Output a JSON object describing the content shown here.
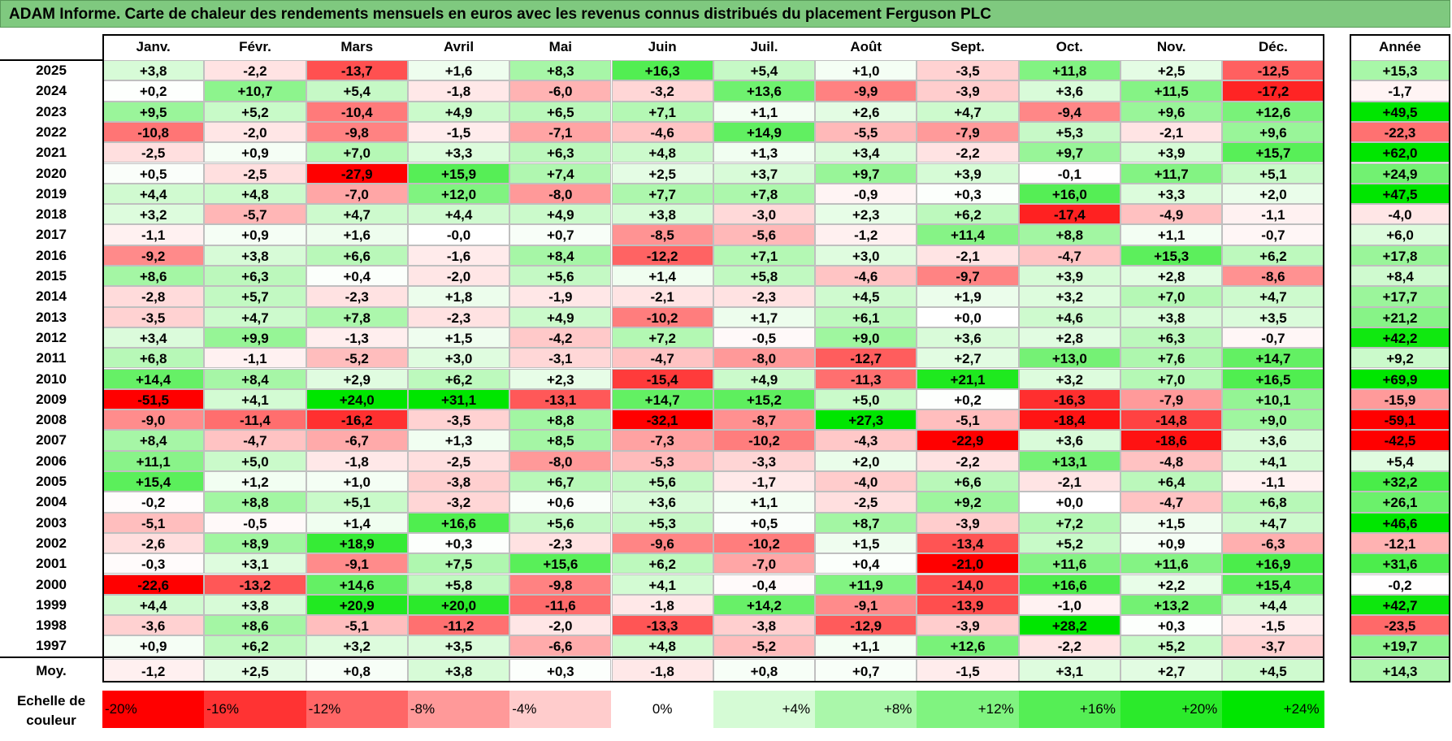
{
  "title": "ADAM Informe. Carte de chaleur des rendements mensuels en euros avec les revenus connus distribués du placement Ferguson PLC",
  "year_header": "Année",
  "avg_label": "Moy.",
  "scale_title": "Echelle de couleur",
  "colors": {
    "title_bg": "#7fc97f",
    "neg_max": "#ff0000",
    "pos_max": "#00e600",
    "neutral": "#ffffff"
  },
  "chart_data": {
    "type": "heatmap",
    "title": "ADAM Informe. Carte de chaleur des rendements mensuels en euros avec les revenus connus distribués du placement Ferguson PLC",
    "months": [
      "Janv.",
      "Févr.",
      "Mars",
      "Avril",
      "Mai",
      "Juin",
      "Juil.",
      "Août",
      "Sept.",
      "Oct.",
      "Nov.",
      "Déc."
    ],
    "rows": [
      {
        "year": "2025",
        "values": [
          "+3,8",
          "-2,2",
          "-13,7",
          "+1,6",
          "+8,3",
          "+16,3",
          "+5,4",
          "+1,0",
          "-3,5",
          "+11,8",
          "+2,5",
          "-12,5"
        ],
        "annual": "+15,3"
      },
      {
        "year": "2024",
        "values": [
          "+0,2",
          "+10,7",
          "+5,4",
          "-1,8",
          "-6,0",
          "-3,2",
          "+13,6",
          "-9,9",
          "-3,9",
          "+3,6",
          "+11,5",
          "-17,2"
        ],
        "annual": "-1,7"
      },
      {
        "year": "2023",
        "values": [
          "+9,5",
          "+5,2",
          "-10,4",
          "+4,9",
          "+6,5",
          "+7,1",
          "+1,1",
          "+2,6",
          "+4,7",
          "-9,4",
          "+9,6",
          "+12,6"
        ],
        "annual": "+49,5"
      },
      {
        "year": "2022",
        "values": [
          "-10,8",
          "-2,0",
          "-9,8",
          "-1,5",
          "-7,1",
          "-4,6",
          "+14,9",
          "-5,5",
          "-7,9",
          "+5,3",
          "-2,1",
          "+9,6"
        ],
        "annual": "-22,3"
      },
      {
        "year": "2021",
        "values": [
          "-2,5",
          "+0,9",
          "+7,0",
          "+3,3",
          "+6,3",
          "+4,8",
          "+1,3",
          "+3,4",
          "-2,2",
          "+9,7",
          "+3,9",
          "+15,7"
        ],
        "annual": "+62,0"
      },
      {
        "year": "2020",
        "values": [
          "+0,5",
          "-2,5",
          "-27,9",
          "+15,9",
          "+7,4",
          "+2,5",
          "+3,7",
          "+9,7",
          "+3,9",
          "-0,1",
          "+11,7",
          "+5,1"
        ],
        "annual": "+24,9"
      },
      {
        "year": "2019",
        "values": [
          "+4,4",
          "+4,8",
          "-7,0",
          "+12,0",
          "-8,0",
          "+7,7",
          "+7,8",
          "-0,9",
          "+0,3",
          "+16,0",
          "+3,3",
          "+2,0"
        ],
        "annual": "+47,5"
      },
      {
        "year": "2018",
        "values": [
          "+3,2",
          "-5,7",
          "+4,7",
          "+4,4",
          "+4,9",
          "+3,8",
          "-3,0",
          "+2,3",
          "+6,2",
          "-17,4",
          "-4,9",
          "-1,1"
        ],
        "annual": "-4,0"
      },
      {
        "year": "2017",
        "values": [
          "-1,1",
          "+0,9",
          "+1,6",
          "-0,0",
          "+0,7",
          "-8,5",
          "-5,6",
          "-1,2",
          "+11,4",
          "+8,8",
          "+1,1",
          "-0,7"
        ],
        "annual": "+6,0"
      },
      {
        "year": "2016",
        "values": [
          "-9,2",
          "+3,8",
          "+6,6",
          "-1,6",
          "+8,4",
          "-12,2",
          "+7,1",
          "+3,0",
          "-2,1",
          "-4,7",
          "+15,3",
          "+6,2"
        ],
        "annual": "+17,8"
      },
      {
        "year": "2015",
        "values": [
          "+8,6",
          "+6,3",
          "+0,4",
          "-2,0",
          "+5,6",
          "+1,4",
          "+5,8",
          "-4,6",
          "-9,7",
          "+3,9",
          "+2,8",
          "-8,6"
        ],
        "annual": "+8,4"
      },
      {
        "year": "2014",
        "values": [
          "-2,8",
          "+5,7",
          "-2,3",
          "+1,8",
          "-1,9",
          "-2,1",
          "-2,3",
          "+4,5",
          "+1,9",
          "+3,2",
          "+7,0",
          "+4,7"
        ],
        "annual": "+17,7"
      },
      {
        "year": "2013",
        "values": [
          "-3,5",
          "+4,7",
          "+7,8",
          "-2,3",
          "+4,9",
          "-10,2",
          "+1,7",
          "+6,1",
          "+0,0",
          "+4,6",
          "+3,8",
          "+3,5"
        ],
        "annual": "+21,2"
      },
      {
        "year": "2012",
        "values": [
          "+3,4",
          "+9,9",
          "-1,3",
          "+1,5",
          "-4,2",
          "+7,2",
          "-0,5",
          "+9,0",
          "+3,6",
          "+2,8",
          "+6,3",
          "-0,7"
        ],
        "annual": "+42,2"
      },
      {
        "year": "2011",
        "values": [
          "+6,8",
          "-1,1",
          "-5,2",
          "+3,0",
          "-3,1",
          "-4,7",
          "-8,0",
          "-12,7",
          "+2,7",
          "+13,0",
          "+7,6",
          "+14,7"
        ],
        "annual": "+9,2"
      },
      {
        "year": "2010",
        "values": [
          "+14,4",
          "+8,4",
          "+2,9",
          "+6,2",
          "+2,3",
          "-15,4",
          "+4,9",
          "-11,3",
          "+21,1",
          "+3,2",
          "+7,0",
          "+16,5"
        ],
        "annual": "+69,9"
      },
      {
        "year": "2009",
        "values": [
          "-51,5",
          "+4,1",
          "+24,0",
          "+31,1",
          "-13,1",
          "+14,7",
          "+15,2",
          "+5,0",
          "+0,2",
          "-16,3",
          "-7,9",
          "+10,1"
        ],
        "annual": "-15,9"
      },
      {
        "year": "2008",
        "values": [
          "-9,0",
          "-11,4",
          "-16,2",
          "-3,5",
          "+8,8",
          "-32,1",
          "-8,7",
          "+27,3",
          "-5,1",
          "-18,4",
          "-14,8",
          "+9,0"
        ],
        "annual": "-59,1"
      },
      {
        "year": "2007",
        "values": [
          "+8,4",
          "-4,7",
          "-6,7",
          "+1,3",
          "+8,5",
          "-7,3",
          "-10,2",
          "-4,3",
          "-22,9",
          "+3,6",
          "-18,6",
          "+3,6"
        ],
        "annual": "-42,5"
      },
      {
        "year": "2006",
        "values": [
          "+11,1",
          "+5,0",
          "-1,8",
          "-2,5",
          "-8,0",
          "-5,3",
          "-3,3",
          "+2,0",
          "-2,2",
          "+13,1",
          "-4,8",
          "+4,1"
        ],
        "annual": "+5,4"
      },
      {
        "year": "2005",
        "values": [
          "+15,4",
          "+1,2",
          "+1,0",
          "-3,8",
          "+6,7",
          "+5,6",
          "-1,7",
          "-4,0",
          "+6,6",
          "-2,1",
          "+6,4",
          "-1,1"
        ],
        "annual": "+32,2"
      },
      {
        "year": "2004",
        "values": [
          "-0,2",
          "+8,8",
          "+5,1",
          "-3,2",
          "+0,6",
          "+3,6",
          "+1,1",
          "-2,5",
          "+9,2",
          "+0,0",
          "-4,7",
          "+6,8"
        ],
        "annual": "+26,1"
      },
      {
        "year": "2003",
        "values": [
          "-5,1",
          "-0,5",
          "+1,4",
          "+16,6",
          "+5,6",
          "+5,3",
          "+0,5",
          "+8,7",
          "-3,9",
          "+7,2",
          "+1,5",
          "+4,7"
        ],
        "annual": "+46,6"
      },
      {
        "year": "2002",
        "values": [
          "-2,6",
          "+8,9",
          "+18,9",
          "+0,3",
          "-2,3",
          "-9,6",
          "-10,2",
          "+1,5",
          "-13,4",
          "+5,2",
          "+0,9",
          "-6,3"
        ],
        "annual": "-12,1"
      },
      {
        "year": "2001",
        "values": [
          "-0,3",
          "+3,1",
          "-9,1",
          "+7,5",
          "+15,6",
          "+6,2",
          "-7,0",
          "+0,4",
          "-21,0",
          "+11,6",
          "+11,6",
          "+16,9"
        ],
        "annual": "+31,6"
      },
      {
        "year": "2000",
        "values": [
          "-22,6",
          "-13,2",
          "+14,6",
          "+5,8",
          "-9,8",
          "+4,1",
          "-0,4",
          "+11,9",
          "-14,0",
          "+16,6",
          "+2,2",
          "+15,4"
        ],
        "annual": "-0,2"
      },
      {
        "year": "1999",
        "values": [
          "+4,4",
          "+3,8",
          "+20,9",
          "+20,0",
          "-11,6",
          "-1,8",
          "+14,2",
          "-9,1",
          "-13,9",
          "-1,0",
          "+13,2",
          "+4,4"
        ],
        "annual": "+42,7"
      },
      {
        "year": "1998",
        "values": [
          "-3,6",
          "+8,6",
          "-5,1",
          "-11,2",
          "-2,0",
          "-13,3",
          "-3,8",
          "-12,9",
          "-3,9",
          "+28,2",
          "+0,3",
          "-1,5"
        ],
        "annual": "-23,5"
      },
      {
        "year": "1997",
        "values": [
          "+0,9",
          "+6,2",
          "+3,2",
          "+3,5",
          "-6,6",
          "+4,8",
          "-5,2",
          "+1,1",
          "+12,6",
          "-2,2",
          "+5,2",
          "-3,7"
        ],
        "annual": "+19,7"
      }
    ],
    "averages": {
      "values": [
        "-1,2",
        "+2,5",
        "+0,8",
        "+3,8",
        "+0,3",
        "-1,8",
        "+0,8",
        "+0,7",
        "-1,5",
        "+3,1",
        "+2,7",
        "+4,5"
      ],
      "annual": "+14,3"
    },
    "scale": [
      "-20%",
      "-16%",
      "-12%",
      "-8%",
      "-4%",
      "0%",
      "+4%",
      "+8%",
      "+12%",
      "+16%",
      "+20%",
      "+24%"
    ]
  }
}
